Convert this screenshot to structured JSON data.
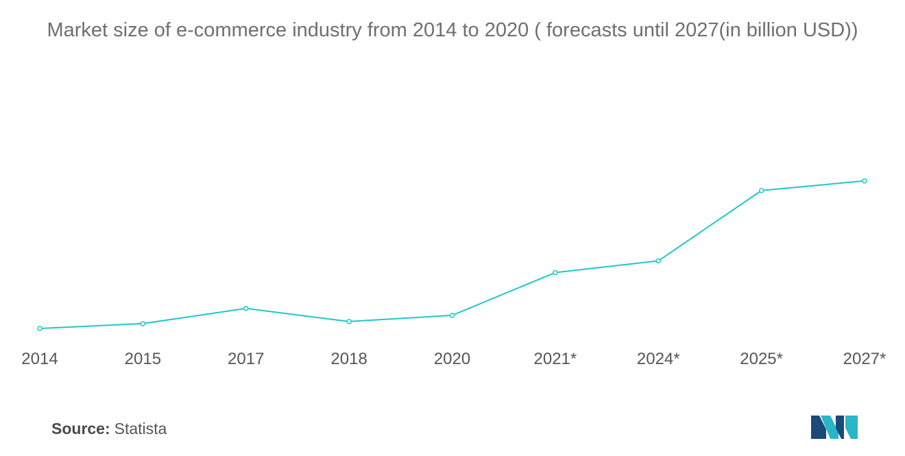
{
  "chart_data": {
    "type": "line",
    "title": "Market size of e-commerce industry from 2014 to 2020 ( forecasts until 2027(in billion USD))",
    "categories": [
      "2014",
      "2015",
      "2017",
      "2018",
      "2020",
      "2021*",
      "2024*",
      "2025*",
      "2027*"
    ],
    "series": [
      {
        "values": [
          3,
          10,
          32,
          13,
          22,
          84,
          101,
          203,
          217
        ]
      }
    ],
    "ylim": [
      0,
      360
    ],
    "grid": false,
    "legend": "none",
    "line_color": "#1cc7cc",
    "marker_fill": "#ffffff"
  },
  "footer": {
    "source_label": "Source:",
    "source_value": "Statista"
  },
  "logo": {
    "icon": "mordor-intelligence-logo",
    "colors": [
      "#1a4a7a",
      "#2ab6c8"
    ]
  }
}
